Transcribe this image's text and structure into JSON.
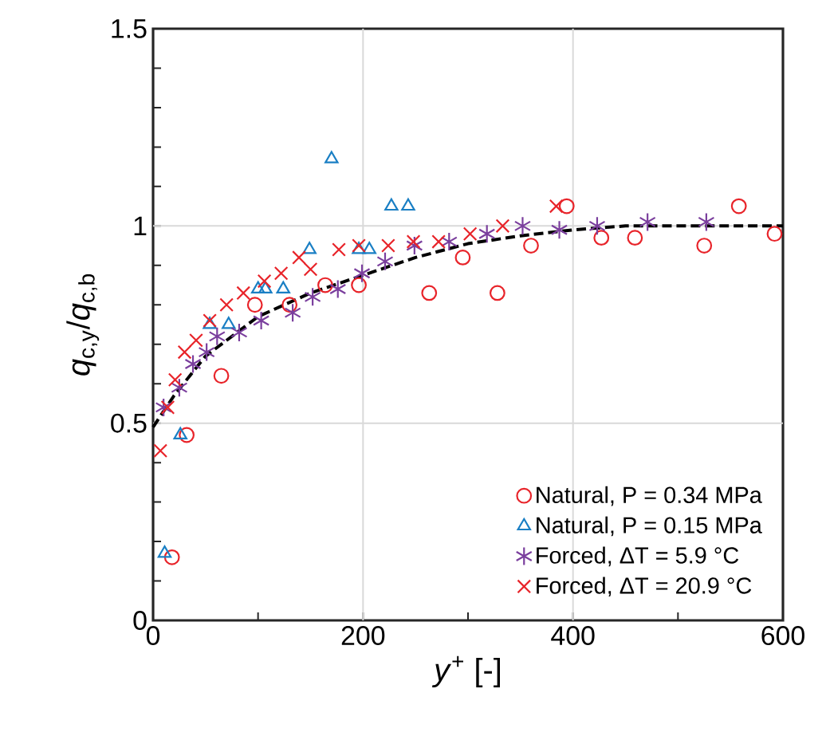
{
  "chart_data": {
    "type": "scatter",
    "xlabel": "*y*$^{+}$ [-]",
    "ylabel": "*q*$_{c,y}$/*q*$_{c,b}$",
    "xlim": [
      0,
      600
    ],
    "ylim": [
      0,
      1.5
    ],
    "xticks": [
      0,
      {
        "value": 100,
        "label": null
      },
      200,
      {
        "value": 300,
        "label": null
      },
      400,
      {
        "value": 500,
        "label": null
      },
      600
    ],
    "yticks": [
      0,
      {
        "value": 0.1,
        "label": null
      },
      {
        "value": 0.2,
        "label": null
      },
      {
        "value": 0.3,
        "label": null
      },
      {
        "value": 0.4,
        "label": null
      },
      0.5,
      {
        "value": 0.6,
        "label": null
      },
      {
        "value": 0.7,
        "label": null
      },
      {
        "value": 0.8,
        "label": null
      },
      {
        "value": 0.9,
        "label": null
      },
      1,
      {
        "value": 1.1,
        "label": null
      },
      {
        "value": 1.2,
        "label": null
      },
      {
        "value": 1.3,
        "label": null
      },
      {
        "value": 1.4,
        "label": null
      },
      1.5
    ],
    "grid": true,
    "legend": "bottom right",
    "series": [
      {
        "name": "Natural, P = 0.34 MPa",
        "color": "#e8242a",
        "marker": "circle",
        "x": [
          18,
          32,
          65,
          97,
          130,
          164,
          196,
          263,
          295,
          328,
          360,
          394,
          427,
          459,
          525,
          558,
          592
        ],
        "values": [
          0.16,
          0.47,
          0.62,
          0.8,
          0.8,
          0.85,
          0.85,
          0.83,
          0.92,
          0.83,
          0.95,
          1.05,
          0.97,
          0.97,
          0.95,
          1.05,
          0.98
        ]
      },
      {
        "name": "Natural, P = 0.15 MPa",
        "color": "#1a7fc4",
        "marker": "triangle",
        "x": [
          11,
          26,
          54,
          72,
          100,
          107,
          124,
          149,
          170,
          196,
          206,
          227,
          243
        ],
        "values": [
          0.17,
          0.47,
          0.75,
          0.75,
          0.84,
          0.84,
          0.84,
          0.94,
          1.17,
          0.94,
          0.94,
          1.05,
          1.05
        ]
      },
      {
        "name": "Forced, ΔT = 5.9 °C",
        "color": "#7a3e9d",
        "x": [
          10,
          25,
          38,
          51,
          61,
          82,
          103,
          133,
          152,
          176,
          199,
          221,
          249,
          282,
          318,
          352,
          387,
          423,
          471,
          527
        ],
        "values": [
          0.54,
          0.59,
          0.65,
          0.68,
          0.72,
          0.73,
          0.76,
          0.78,
          0.82,
          0.84,
          0.88,
          0.91,
          0.95,
          0.96,
          0.98,
          1.0,
          0.99,
          1.0,
          1.01,
          1.01
        ]
      },
      {
        "name": "Forced, ΔT = 20.9 °C",
        "color": "#e8242a",
        "marker": "cross",
        "x": [
          7,
          14,
          21,
          30,
          41,
          54,
          70,
          86,
          106,
          122,
          139,
          150,
          177,
          196,
          224,
          248,
          272,
          302,
          333,
          384
        ],
        "values": [
          0.43,
          0.54,
          0.61,
          0.68,
          0.71,
          0.76,
          0.8,
          0.83,
          0.86,
          0.88,
          0.92,
          0.89,
          0.94,
          0.95,
          0.95,
          0.96,
          0.96,
          0.98,
          1.0,
          1.05
        ]
      },
      {
        "type": "line",
        "color": "#000000",
        "marker": "none",
        "line_style": "dashed",
        "x": [
          0,
          20,
          50,
          100,
          150,
          200,
          250,
          300,
          350,
          400,
          450,
          500,
          600
        ],
        "values": [
          0.49,
          0.57,
          0.67,
          0.77,
          0.83,
          0.875,
          0.92,
          0.955,
          0.975,
          0.99,
          1.0,
          1.0,
          1.0
        ]
      }
    ]
  }
}
